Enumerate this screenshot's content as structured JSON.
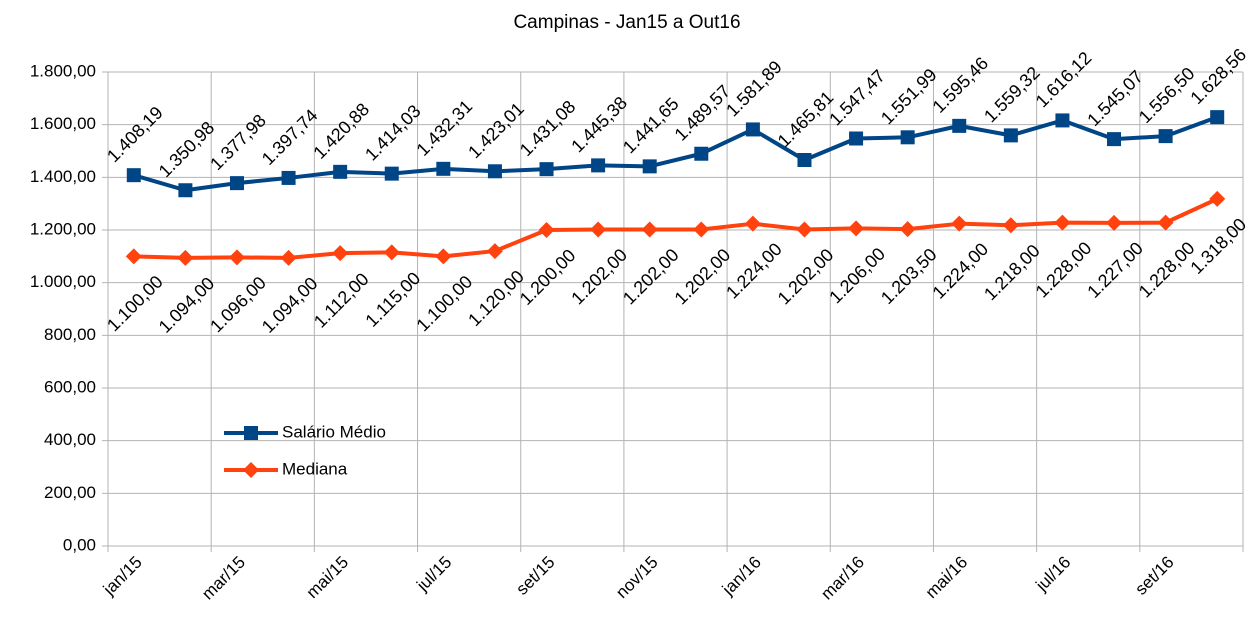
{
  "chart_data": {
    "type": "line",
    "title": "Campinas - Jan15 a Out16",
    "categories": [
      "jan/15",
      null,
      "mar/15",
      null,
      "mai/15",
      null,
      "jul/15",
      null,
      "set/15",
      null,
      "nov/15",
      null,
      "jan/16",
      null,
      "mar/16",
      null,
      "mai/16",
      null,
      "jul/16",
      null,
      "set/16",
      null
    ],
    "series": [
      {
        "name": "Salário Médio",
        "color": "#004586",
        "marker": "square",
        "values": [
          1408.19,
          1350.98,
          1377.98,
          1397.74,
          1420.88,
          1414.03,
          1432.31,
          1423.01,
          1431.08,
          1445.38,
          1441.65,
          1489.57,
          1581.89,
          1465.81,
          1547.47,
          1551.99,
          1595.46,
          1559.32,
          1616.12,
          1545.07,
          1556.5,
          1628.56
        ],
        "value_labels": [
          "1.408,19",
          "1.350,98",
          "1.377,98",
          "1.397,74",
          "1.420,88",
          "1.414,03",
          "1.432,31",
          "1.423,01",
          "1.431,08",
          "1.445,38",
          "1.441,65",
          "1.489,57",
          "1.581,89",
          "1.465,81",
          "1.547,47",
          "1.551,99",
          "1.595,46",
          "1.559,32",
          "1.616,12",
          "1.545,07",
          "1.556,50",
          "1.628,56"
        ]
      },
      {
        "name": "Mediana",
        "color": "#ff420e",
        "marker": "diamond",
        "values": [
          1100,
          1094,
          1096,
          1094,
          1112,
          1115,
          1100,
          1120,
          1200,
          1202,
          1202,
          1202,
          1224,
          1202,
          1206,
          1203.5,
          1224,
          1218,
          1228,
          1227,
          1228,
          1318
        ],
        "value_labels": [
          "1.100,00",
          "1.094,00",
          "1.096,00",
          "1.094,00",
          "1.112,00",
          "1.115,00",
          "1.100,00",
          "1.120,00",
          "1.200,00",
          "1.202,00",
          "1.202,00",
          "1.202,00",
          "1.224,00",
          "1.202,00",
          "1.206,00",
          "1.203,50",
          "1.224,00",
          "1.218,00",
          "1.228,00",
          "1.227,00",
          "1.228,00",
          "1.318,00"
        ]
      }
    ],
    "ylim": [
      0,
      1800
    ],
    "yticks": [
      {
        "value": 0,
        "label": "0,00"
      },
      {
        "value": 200,
        "label": "200,00"
      },
      {
        "value": 400,
        "label": "400,00"
      },
      {
        "value": 600,
        "label": "600,00"
      },
      {
        "value": 800,
        "label": "800,00"
      },
      {
        "value": 1000,
        "label": "1.000,00"
      },
      {
        "value": 1200,
        "label": "1.200,00"
      },
      {
        "value": 1400,
        "label": "1.400,00"
      },
      {
        "value": 1600,
        "label": "1.600,00"
      },
      {
        "value": 1800,
        "label": "1.800,00"
      }
    ],
    "grid": true
  }
}
